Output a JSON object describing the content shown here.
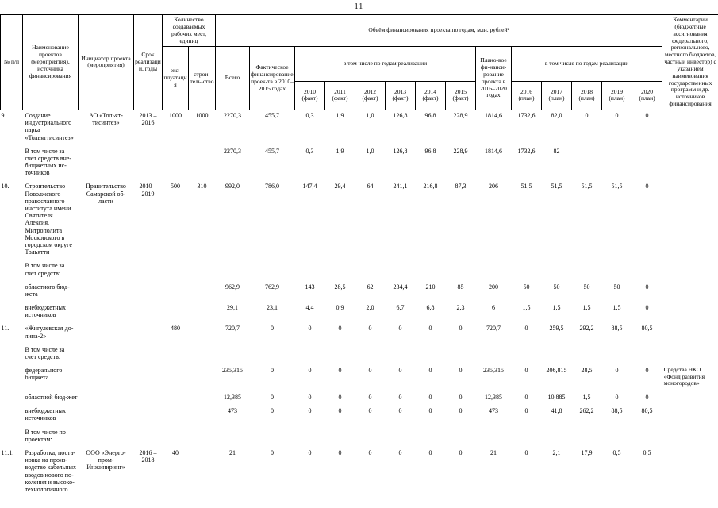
{
  "page": {
    "number": "11"
  },
  "table": {
    "header": {
      "num": "№ п/п",
      "name": "Наименование проектов (мероприятия), источника финансирования",
      "initiator": "Инициатор проекта (мероприятия)",
      "years": "Срок реализации, годы",
      "jobs_group": "Количество создаваемых рабочих мест, единиц",
      "jobs_operation": "экс-плуатация",
      "jobs_construction": "строи-тель-ство",
      "financing_group": "Объём финансирования проекта по годам, млн. рублей²",
      "total": "Всего",
      "fact_total": "Фактическое финансирование проек-та в 2010–2015 годах",
      "fact_years_group": "в том числе по годам реализации",
      "plan_total": "Плано-вое фи-нанси-рование проекта в 2016–2020 годах",
      "plan_years_group": "в том числе по годам реализации",
      "year_columns": [
        {
          "year": "2010",
          "tag": "(факт)"
        },
        {
          "year": "2011",
          "tag": "(факт)"
        },
        {
          "year": "2012",
          "tag": "(факт)"
        },
        {
          "year": "2013",
          "tag": "(факт)"
        },
        {
          "year": "2014",
          "tag": "(факт)"
        },
        {
          "year": "2015",
          "tag": "(факт)"
        },
        {
          "year": "2016",
          "tag": "(план)"
        },
        {
          "year": "2017",
          "tag": "(план)"
        },
        {
          "year": "2018",
          "tag": "(план)"
        },
        {
          "year": "2019",
          "tag": "(план)"
        },
        {
          "year": "2020",
          "tag": "(план)"
        }
      ],
      "comment": "Комментарии (бюджетные ассигнования федерального, регионального, местного бюджетов, частный инвестор) с указанием наименования государственных программ и др. источников финансирования"
    },
    "rows": [
      {
        "num": "9.",
        "name": "Создание индустриального парка «Тольяттисинтез»",
        "initiator": "АО «Тольят-тисинтез»",
        "years": "2013 – 2016",
        "jobs_operation": "1000",
        "jobs_construction": "1000",
        "values": [
          "2270,3",
          "455,7",
          "0,3",
          "1,9",
          "1,0",
          "126,8",
          "96,8",
          "228,9",
          "1814,6",
          "1732,6",
          "82,0",
          "0",
          "0",
          "0"
        ],
        "comment": ""
      },
      {
        "num": "",
        "name": "В том числе за счет средств вне-бюджетных ис-точников",
        "initiator": "",
        "years": "",
        "jobs_operation": "",
        "jobs_construction": "",
        "values": [
          "2270,3",
          "455,7",
          "0,3",
          "1,9",
          "1,0",
          "126,8",
          "96,8",
          "228,9",
          "1814,6",
          "1732,6",
          "82",
          "",
          "",
          ""
        ],
        "comment": ""
      },
      {
        "num": "10.",
        "name": "Строительство Поволжского православного института имени Святителя Алексия, Митрополита Московского в городском округе Тольятти",
        "initiator": "Правительство Самарской об-ласти",
        "years": "2010 – 2019",
        "jobs_operation": "500",
        "jobs_construction": "310",
        "values": [
          "992,0",
          "786,0",
          "147,4",
          "29,4",
          "64",
          "241,1",
          "216,8",
          "87,3",
          "206",
          "51,5",
          "51,5",
          "51,5",
          "51,5",
          "0"
        ],
        "comment": ""
      },
      {
        "num": "",
        "name": "В том числе за счет средств:",
        "initiator": "",
        "years": "",
        "jobs_operation": "",
        "jobs_construction": "",
        "values": [
          "",
          "",
          "",
          "",
          "",
          "",
          "",
          "",
          "",
          "",
          "",
          "",
          "",
          ""
        ],
        "comment": ""
      },
      {
        "num": "",
        "name": "областного бюд-жета",
        "initiator": "",
        "years": "",
        "jobs_operation": "",
        "jobs_construction": "",
        "values": [
          "962,9",
          "762,9",
          "143",
          "28,5",
          "62",
          "234,4",
          "210",
          "85",
          "200",
          "50",
          "50",
          "50",
          "50",
          "0"
        ],
        "comment": ""
      },
      {
        "num": "",
        "name": "внебюджетных источников",
        "initiator": "",
        "years": "",
        "jobs_operation": "",
        "jobs_construction": "",
        "values": [
          "29,1",
          "23,1",
          "4,4",
          "0,9",
          "2,0",
          "6,7",
          "6,8",
          "2,3",
          "6",
          "1,5",
          "1,5",
          "1,5",
          "1,5",
          "0"
        ],
        "comment": ""
      },
      {
        "num": "11.",
        "name": "«Жигулевская до-лина-2»",
        "initiator": "",
        "years": "",
        "jobs_operation": "480",
        "jobs_construction": "",
        "values": [
          "720,7",
          "0",
          "0",
          "0",
          "0",
          "0",
          "0",
          "0",
          "720,7",
          "0",
          "259,5",
          "292,2",
          "88,5",
          "80,5"
        ],
        "comment": ""
      },
      {
        "num": "",
        "name": "В том числе за счет средств:",
        "initiator": "",
        "years": "",
        "jobs_operation": "",
        "jobs_construction": "",
        "values": [
          "",
          "",
          "",
          "",
          "",
          "",
          "",
          "",
          "",
          "",
          "",
          "",
          "",
          ""
        ],
        "comment": ""
      },
      {
        "num": "",
        "name": "федерального бюджета",
        "initiator": "",
        "years": "",
        "jobs_operation": "",
        "jobs_construction": "",
        "values": [
          "235,315",
          "0",
          "0",
          "0",
          "0",
          "0",
          "0",
          "0",
          "235,315",
          "0",
          "206,815",
          "28,5",
          "0",
          "0"
        ],
        "comment": "Средства НКО «Фонд развития моногородов»"
      },
      {
        "num": "",
        "name": "областной бюд-жет",
        "initiator": "",
        "years": "",
        "jobs_operation": "",
        "jobs_construction": "",
        "values": [
          "12,385",
          "0",
          "0",
          "0",
          "0",
          "0",
          "0",
          "0",
          "12,385",
          "0",
          "10,885",
          "1,5",
          "0",
          "0"
        ],
        "comment": ""
      },
      {
        "num": "",
        "name": "внебюджетных источников",
        "initiator": "",
        "years": "",
        "jobs_operation": "",
        "jobs_construction": "",
        "values": [
          "473",
          "0",
          "0",
          "0",
          "0",
          "0",
          "0",
          "0",
          "473",
          "0",
          "41,8",
          "262,2",
          "88,5",
          "80,5"
        ],
        "comment": ""
      },
      {
        "num": "",
        "name": "В том числе по проектам:",
        "initiator": "",
        "years": "",
        "jobs_operation": "",
        "jobs_construction": "",
        "values": [
          "",
          "",
          "",
          "",
          "",
          "",
          "",
          "",
          "",
          "",
          "",
          "",
          "",
          ""
        ],
        "comment": ""
      },
      {
        "num": "11.1.",
        "name": "Разработка, поста-новка на произ-водство кабельных вводов нового по-коления и высоко-технологичного",
        "initiator": "ООО «Энерго-пром-Инжиниринг»",
        "years": "2016 – 2018",
        "jobs_operation": "40",
        "jobs_construction": "",
        "values": [
          "21",
          "0",
          "0",
          "0",
          "0",
          "0",
          "0",
          "0",
          "21",
          "0",
          "2,1",
          "17,9",
          "0,5",
          "0,5"
        ],
        "comment": ""
      }
    ]
  }
}
